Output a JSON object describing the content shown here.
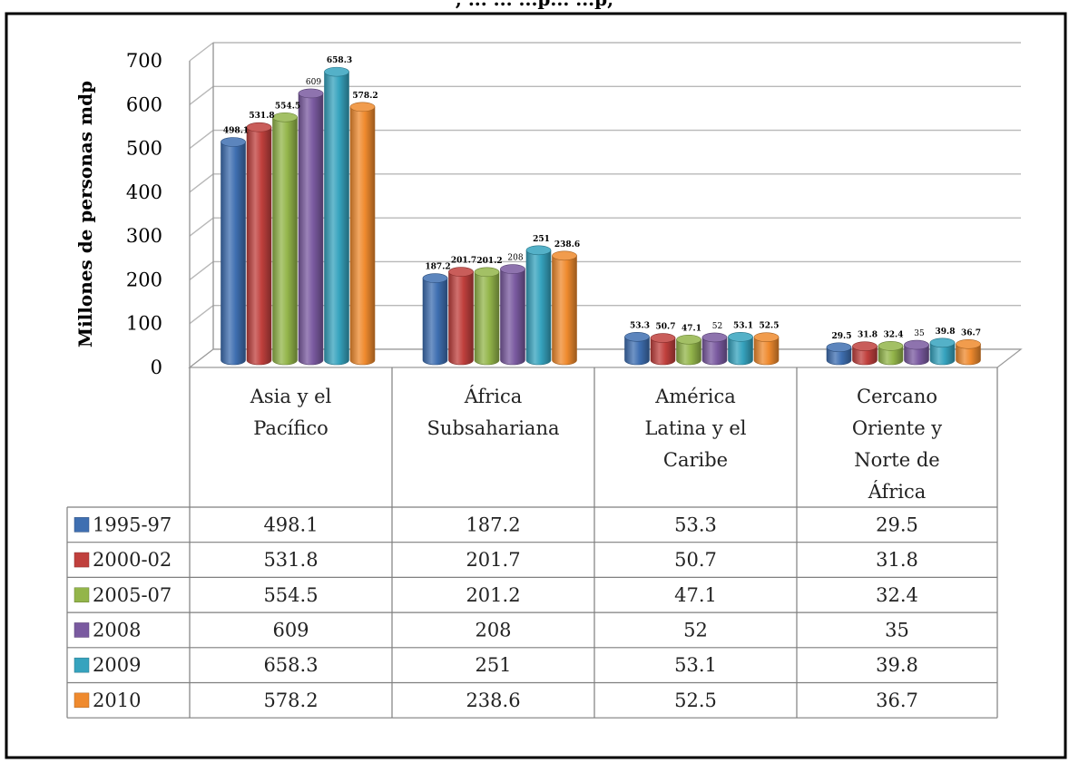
{
  "header_fragment": ", ... ... ...p... ...p,",
  "chart_data": {
    "type": "bar",
    "style": "3d-cylinder",
    "title": "",
    "xlabel": "",
    "ylabel": "Millones de personas mdp",
    "ylim": [
      0,
      700
    ],
    "y_ticks": [
      "0",
      "100",
      "200",
      "300",
      "400",
      "500",
      "600",
      "700"
    ],
    "grid": true,
    "categories": [
      {
        "lines": [
          "Asia y el",
          "Pacífico"
        ]
      },
      {
        "lines": [
          "África",
          "Subsahariana"
        ]
      },
      {
        "lines": [
          "América",
          "Latina y el",
          "Caribe"
        ]
      },
      {
        "lines": [
          "Cercano",
          "Oriente y",
          "Norte de",
          "África"
        ]
      }
    ],
    "series": [
      {
        "name": "1995-97",
        "color": "#3f6fb1",
        "values": [
          498.1,
          187.2,
          53.3,
          29.5
        ],
        "labels": [
          "498.1",
          "187.2",
          "53.3",
          "29.5"
        ],
        "table": [
          "498.1",
          "187.2",
          "53.3",
          "29.5"
        ]
      },
      {
        "name": "2000-02",
        "color": "#c0403d",
        "values": [
          531.8,
          201.7,
          50.7,
          31.8
        ],
        "labels": [
          "531.8",
          "201.7",
          "50.7",
          "31.8"
        ],
        "table": [
          "531.8",
          "201.7",
          "50.7",
          "31.8"
        ]
      },
      {
        "name": "2005-07",
        "color": "#93b54a",
        "values": [
          554.5,
          201.2,
          47.1,
          32.4
        ],
        "labels": [
          "554.5",
          "201.2",
          "47.1",
          "32.4"
        ],
        "table": [
          "554.5",
          "201.2",
          "47.1",
          "32.4"
        ]
      },
      {
        "name": "2008",
        "color": "#7a5aa0",
        "values": [
          609,
          208,
          52,
          35
        ],
        "labels": [
          "609",
          "208",
          "52",
          "35"
        ],
        "table": [
          "609",
          "208",
          "52",
          "35"
        ]
      },
      {
        "name": "2009",
        "color": "#36a3be",
        "values": [
          658.3,
          251,
          53.1,
          39.8
        ],
        "labels": [
          "658.3",
          "251",
          "53.1",
          "39.8"
        ],
        "table": [
          "658.3",
          "251",
          "53.1",
          "39.8"
        ]
      },
      {
        "name": "2010",
        "color": "#ef8a2e",
        "values": [
          578.2,
          238.6,
          52.5,
          36.7
        ],
        "labels": [
          "578.2",
          "238.6",
          "52.5",
          "36.7"
        ],
        "table": [
          "578.2",
          "238.6",
          "52.5",
          "36.7"
        ]
      }
    ],
    "data_table": true,
    "legend": "in-table-left"
  }
}
